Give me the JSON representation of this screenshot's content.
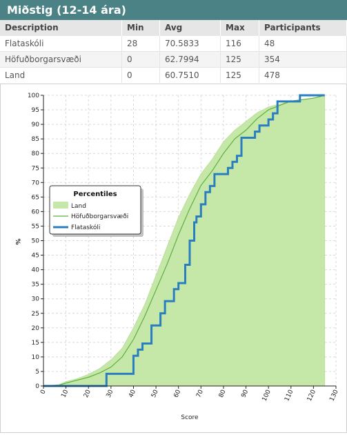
{
  "panel": {
    "title": "Miðstig (12-14 ára)"
  },
  "table": {
    "headers": [
      "Description",
      "Min",
      "Avg",
      "Max",
      "Participants"
    ],
    "rows": [
      [
        "Flataskóli",
        "28",
        "70.5833",
        "116",
        "48"
      ],
      [
        "Höfuðborgarsvæði",
        "0",
        "62.7994",
        "125",
        "354"
      ],
      [
        "Land",
        "0",
        "60.7510",
        "125",
        "478"
      ]
    ]
  },
  "chart_data": {
    "type": "line",
    "title": "",
    "xlabel": "Score",
    "ylabel": "%",
    "xlim": [
      0,
      130
    ],
    "ylim": [
      0,
      100
    ],
    "xticks": [
      0,
      10,
      20,
      30,
      40,
      50,
      60,
      70,
      80,
      90,
      100,
      110,
      120,
      130
    ],
    "yticks": [
      0,
      5,
      10,
      15,
      20,
      25,
      30,
      35,
      40,
      45,
      50,
      55,
      60,
      65,
      70,
      75,
      80,
      85,
      90,
      95,
      100
    ],
    "grid": true,
    "legend": {
      "title": "Percentiles",
      "placement": "top-left"
    },
    "series": [
      {
        "name": "Land",
        "style": "area",
        "color": "#c5e8a8",
        "x": [
          0,
          7,
          10,
          15,
          20,
          25,
          30,
          35,
          40,
          45,
          50,
          55,
          60,
          65,
          70,
          75,
          80,
          85,
          90,
          95,
          100,
          105,
          110,
          115,
          120,
          125
        ],
        "y": [
          0,
          0.5,
          1.5,
          2.5,
          4,
          6,
          9,
          13,
          20,
          28,
          38,
          48,
          58,
          66,
          73,
          78,
          84,
          88,
          91,
          94,
          96,
          97,
          98,
          98.5,
          99,
          100
        ]
      },
      {
        "name": "Höfuðborgarsvæði",
        "style": "line",
        "color": "#5cae3f",
        "x": [
          0,
          7,
          10,
          15,
          20,
          25,
          30,
          35,
          40,
          45,
          50,
          55,
          60,
          65,
          70,
          75,
          80,
          85,
          90,
          95,
          100,
          105,
          110,
          115,
          120,
          125
        ],
        "y": [
          0,
          0.3,
          1,
          2,
          3,
          4.5,
          6.5,
          10,
          16,
          24,
          33,
          42,
          52,
          61,
          69,
          74,
          80,
          85,
          88,
          92,
          95,
          96.5,
          98,
          98.5,
          99,
          100
        ]
      },
      {
        "name": "Flataskóli",
        "style": "step",
        "color": "#2a7dbf",
        "x": [
          0,
          27,
          28,
          39,
          40,
          42,
          44,
          48,
          50,
          52,
          54,
          58,
          60,
          63,
          65,
          67,
          68,
          70,
          72,
          74,
          76,
          80,
          82,
          84,
          86,
          88,
          92,
          94,
          96,
          100,
          102,
          104,
          106,
          108,
          114,
          116,
          125
        ],
        "y": [
          0,
          0,
          4.2,
          4.2,
          10.4,
          12.5,
          14.6,
          20.8,
          20.8,
          25,
          29.2,
          33.3,
          35.4,
          41.7,
          50,
          56.3,
          58.3,
          62.5,
          66.7,
          68.8,
          72.9,
          72.9,
          75,
          77.1,
          79.2,
          85.4,
          85.4,
          87.5,
          89.6,
          91.7,
          93.8,
          97.9,
          97.9,
          97.9,
          100,
          100,
          100
        ]
      }
    ]
  }
}
